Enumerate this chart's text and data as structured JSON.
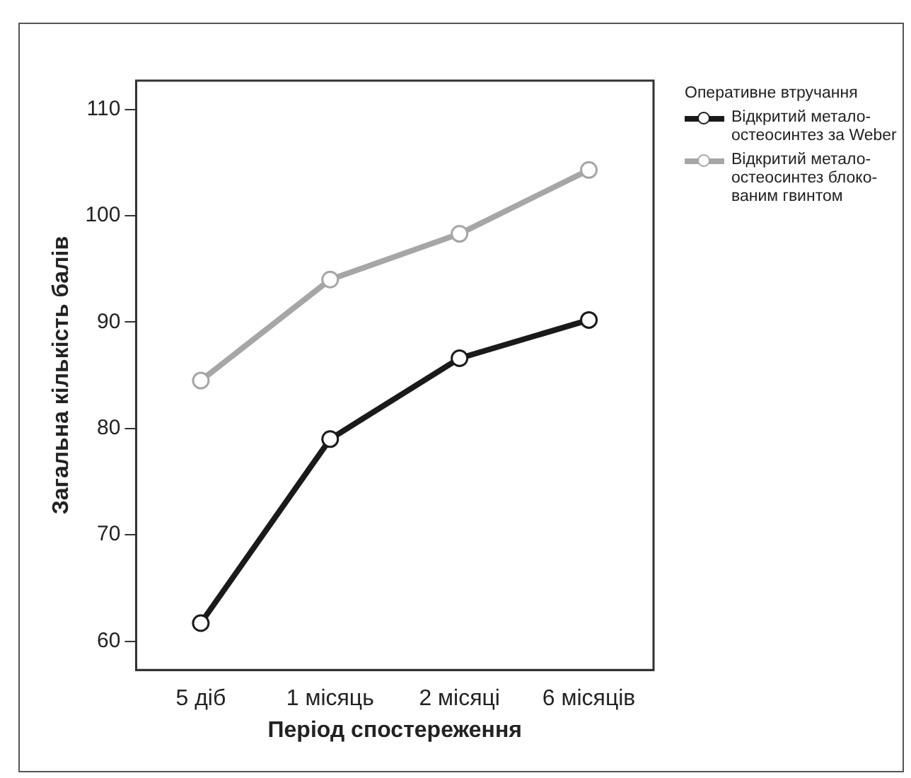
{
  "chart_data": {
    "type": "line",
    "xlabel": "Період спостереження",
    "ylabel": "Загальна кількість балів",
    "legend_title": "Оперативне втручання",
    "legend": "right",
    "marker": "circle",
    "grid": false,
    "categories": [
      "5 діб",
      "1 місяць",
      "2 місяці",
      "6 місяців"
    ],
    "ylim": [
      57.3,
      112.7
    ],
    "yticks": [
      60,
      70,
      80,
      90,
      100,
      110
    ],
    "series": [
      {
        "name": "Відкритий метало-остеосинтез за Weber",
        "color": "#1a1a1a",
        "values": [
          61.7,
          79.0,
          86.6,
          90.2
        ]
      },
      {
        "name": "Відкритий метало-остеосинтез блоко-ваним гвинтом",
        "color": "#a6a6a6",
        "values": [
          84.5,
          94.0,
          98.3,
          104.3
        ]
      }
    ]
  }
}
